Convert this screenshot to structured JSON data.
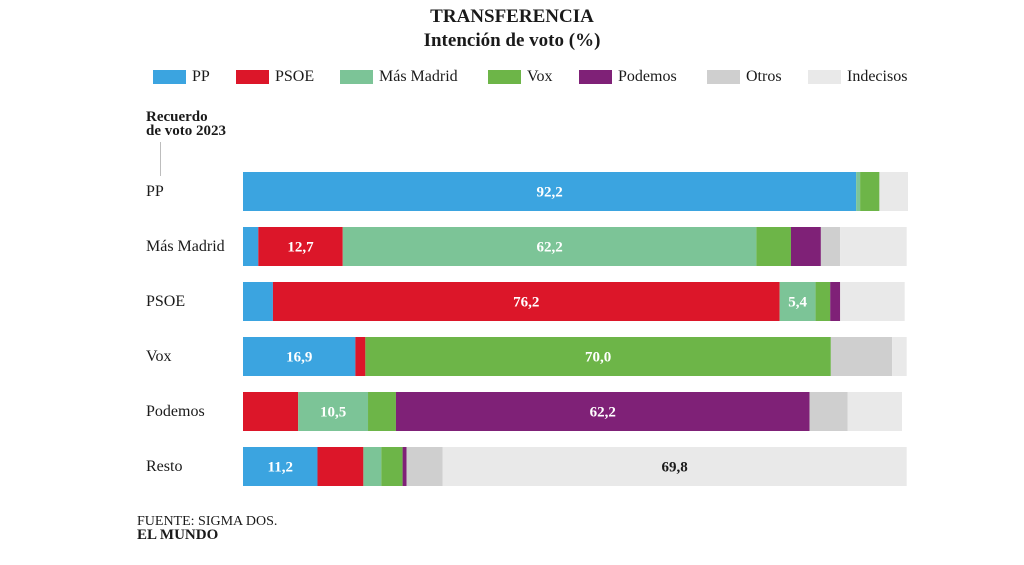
{
  "chart_data": {
    "type": "bar",
    "stacked": true,
    "orientation": "horizontal",
    "title": "TRANSFERENCIA",
    "subtitle": "Intención  de voto (%)",
    "ylabel_line1": "Recuerdo",
    "ylabel_line2": "de voto 2023",
    "legend_placement": "top",
    "categories": [
      "PP",
      "Más Madrid",
      "PSOE",
      "Vox",
      "Podemos",
      "Resto"
    ],
    "series": [
      {
        "name": "PP",
        "color": "#3ba4e0",
        "values": [
          92.2,
          2.3,
          4.5,
          16.9,
          0,
          11.2
        ],
        "labels": [
          "92,2",
          "",
          "",
          "16,9",
          "",
          "11,2"
        ]
      },
      {
        "name": "PSOE",
        "color": "#dc1629",
        "values": [
          0,
          12.7,
          76.2,
          1.5,
          8.3,
          6.9
        ],
        "labels": [
          "",
          "12,7",
          "76,2",
          "",
          "",
          ""
        ]
      },
      {
        "name": "Más Madrid",
        "color": "#7cc497",
        "values": [
          0.6,
          62.2,
          5.4,
          0,
          10.5,
          2.7
        ],
        "labels": [
          "",
          "62,2",
          "5,4",
          "",
          "10,5",
          ""
        ]
      },
      {
        "name": "Vox",
        "color": "#6db548",
        "values": [
          2.9,
          5.2,
          2.2,
          70.0,
          4.2,
          3.2
        ],
        "labels": [
          "",
          "",
          "",
          "70,0",
          "",
          ""
        ]
      },
      {
        "name": "Podemos",
        "color": "#7f2177",
        "values": [
          0,
          4.5,
          1.5,
          0,
          62.2,
          0.6
        ],
        "labels": [
          "",
          "",
          "",
          "",
          "62,2",
          ""
        ]
      },
      {
        "name": "Otros",
        "color": "#cfcfcf",
        "values": [
          0,
          2.9,
          0,
          9.2,
          5.7,
          5.4
        ],
        "labels": [
          "",
          "",
          "",
          "",
          "",
          ""
        ]
      },
      {
        "name": "Indecisos",
        "color": "#e9e9e9",
        "values": [
          4.3,
          10.0,
          9.7,
          2.2,
          8.2,
          69.8
        ],
        "labels": [
          "",
          "",
          "",
          "",
          "",
          "69,8"
        ]
      }
    ],
    "xlim": [
      0,
      100
    ]
  },
  "source": "FUENTE: SIGMA DOS.",
  "brand": "EL MUNDO"
}
